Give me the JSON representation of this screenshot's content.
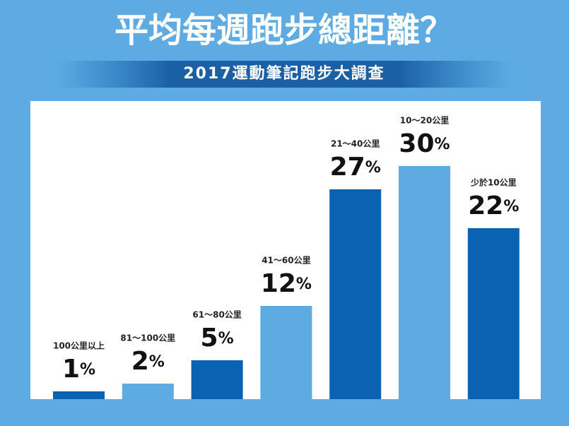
{
  "chart_data": {
    "type": "bar",
    "title": "平均每週跑步總距離？",
    "subtitle": "2017運動筆記跑步大調查",
    "categories": [
      "100公里以上",
      "81～100公里",
      "61～80公里",
      "41～60公里",
      "21～40公里",
      "10～20公里",
      "少於10公里"
    ],
    "values": [
      1,
      2,
      5,
      12,
      27,
      30,
      22
    ],
    "value_labels": [
      "1%",
      "2%",
      "5%",
      "12%",
      "27%",
      "30%",
      "22%"
    ],
    "colors": [
      "#0b62b3",
      "#5eabe2",
      "#0b62b3",
      "#5eabe2",
      "#0b62b3",
      "#5eabe2",
      "#0b62b3"
    ],
    "ylim": [
      0,
      30
    ]
  }
}
